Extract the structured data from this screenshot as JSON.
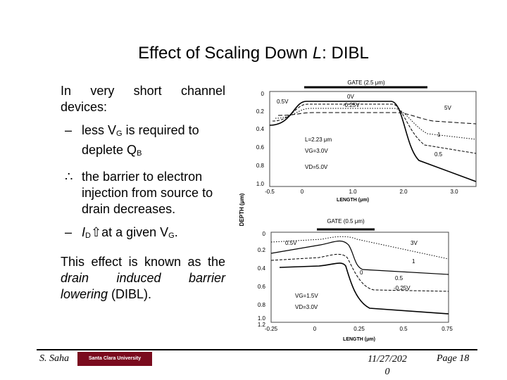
{
  "slide": {
    "title_prefix": "Effect of Scaling Down ",
    "title_var": "L",
    "title_suffix": ": DIBL",
    "bullet1": "In very short channel devices:",
    "sub1_marker": "–",
    "sub1_a": "less V",
    "sub1_a_sub": "G",
    "sub1_b": " is required to deplete Q",
    "sub1_b_sub": "B",
    "sub2_marker": "∴",
    "sub2": "the barrier to electron injection from source to drain decreases.",
    "sub3_marker": "–",
    "sub3_a": "I",
    "sub3_a_sub": "D",
    "sub3_arrow": "⇧",
    "sub3_b": "at a given V",
    "sub3_b_sub": "G",
    "sub3_end": ".",
    "para_1": "This effect is known as the ",
    "para_em": "drain induced barrier lowering",
    "para_2": " (DIBL)."
  },
  "figure": {
    "depth_label": "DEPTH (μm)",
    "top": {
      "gate_label": "GATE (2.5 μm)",
      "depth_ticks": [
        "0",
        "0.2",
        "0.4",
        "0.6",
        "0.8",
        "1.0"
      ],
      "length_ticks": [
        "-0.5",
        "0",
        "1.0",
        "2.0",
        "3.0"
      ],
      "xlabel": "LENGTH (μm)",
      "contours": [
        "0.5V",
        "0V",
        "-0.25V",
        "5V",
        "1",
        "0.5"
      ],
      "params": [
        "L=2.23 μm",
        "VG=3.0V",
        "VD=5.0V"
      ]
    },
    "bottom": {
      "gate_label": "GATE (0.5 μm)",
      "depth_ticks": [
        "0",
        "0.2",
        "0.4",
        "0.6",
        "0.8",
        "1.0",
        "1.2"
      ],
      "length_ticks": [
        "-0.25",
        "0",
        "0.25",
        "0.5",
        "0.75"
      ],
      "xlabel": "LENGTH (μm)",
      "contours": [
        "0.5V",
        "3V",
        "1",
        "0",
        "0.5",
        "-0.25V"
      ],
      "params": [
        "VG=1.5V",
        "VD=3.0V"
      ]
    }
  },
  "footer": {
    "author": "S. Saha",
    "logo_text": "Santa Clara University",
    "date_line1": "11/27/202",
    "date_line2": "0",
    "page": "Page 18"
  }
}
